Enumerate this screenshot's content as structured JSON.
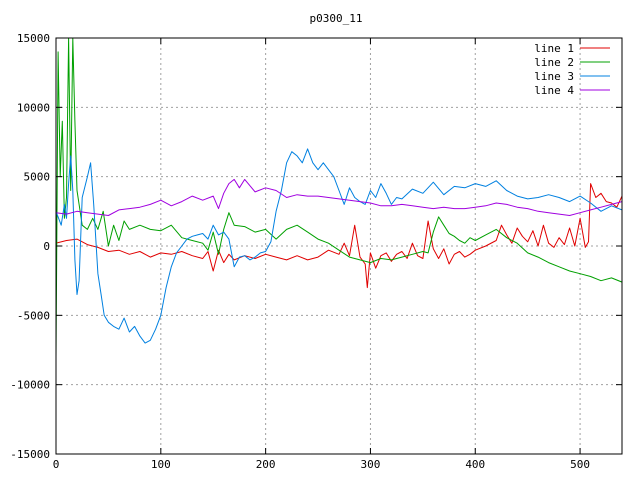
{
  "chart_data": {
    "type": "line",
    "title": "p0300_11",
    "xlabel": "",
    "ylabel": "",
    "xlim": [
      0,
      540
    ],
    "ylim": [
      -15000,
      15000
    ],
    "x_ticks": [
      0,
      100,
      200,
      300,
      400,
      500
    ],
    "y_ticks": [
      -15000,
      -10000,
      -5000,
      0,
      5000,
      10000,
      15000
    ],
    "grid": true,
    "legend_position": "top-right",
    "series": [
      {
        "name": "line 1",
        "color": "#e00000",
        "points": [
          [
            0,
            200
          ],
          [
            10,
            400
          ],
          [
            20,
            500
          ],
          [
            30,
            100
          ],
          [
            40,
            -100
          ],
          [
            50,
            -400
          ],
          [
            60,
            -300
          ],
          [
            70,
            -600
          ],
          [
            80,
            -400
          ],
          [
            90,
            -800
          ],
          [
            100,
            -500
          ],
          [
            110,
            -600
          ],
          [
            120,
            -400
          ],
          [
            130,
            -700
          ],
          [
            140,
            -900
          ],
          [
            145,
            -400
          ],
          [
            150,
            -1800
          ],
          [
            155,
            -300
          ],
          [
            160,
            -1200
          ],
          [
            165,
            -600
          ],
          [
            170,
            -1000
          ],
          [
            180,
            -700
          ],
          [
            190,
            -900
          ],
          [
            200,
            -600
          ],
          [
            210,
            -800
          ],
          [
            220,
            -1000
          ],
          [
            230,
            -700
          ],
          [
            240,
            -1000
          ],
          [
            250,
            -800
          ],
          [
            260,
            -300
          ],
          [
            270,
            -600
          ],
          [
            275,
            200
          ],
          [
            280,
            -700
          ],
          [
            285,
            1500
          ],
          [
            290,
            -800
          ],
          [
            295,
            -1300
          ],
          [
            297,
            -3000
          ],
          [
            300,
            -500
          ],
          [
            305,
            -1600
          ],
          [
            310,
            -700
          ],
          [
            315,
            -500
          ],
          [
            320,
            -1100
          ],
          [
            325,
            -600
          ],
          [
            330,
            -400
          ],
          [
            335,
            -900
          ],
          [
            340,
            200
          ],
          [
            345,
            -700
          ],
          [
            350,
            -900
          ],
          [
            355,
            1800
          ],
          [
            360,
            -200
          ],
          [
            365,
            -900
          ],
          [
            370,
            -200
          ],
          [
            375,
            -1300
          ],
          [
            380,
            -600
          ],
          [
            385,
            -400
          ],
          [
            390,
            -800
          ],
          [
            395,
            -600
          ],
          [
            400,
            -300
          ],
          [
            410,
            0
          ],
          [
            420,
            400
          ],
          [
            425,
            1500
          ],
          [
            430,
            800
          ],
          [
            435,
            200
          ],
          [
            440,
            1300
          ],
          [
            445,
            700
          ],
          [
            450,
            300
          ],
          [
            455,
            1100
          ],
          [
            460,
            0
          ],
          [
            465,
            1500
          ],
          [
            470,
            200
          ],
          [
            475,
            -100
          ],
          [
            480,
            600
          ],
          [
            485,
            100
          ],
          [
            490,
            1300
          ],
          [
            495,
            0
          ],
          [
            500,
            2000
          ],
          [
            505,
            -100
          ],
          [
            508,
            300
          ],
          [
            510,
            4500
          ],
          [
            515,
            3500
          ],
          [
            520,
            3800
          ],
          [
            525,
            3200
          ],
          [
            530,
            3100
          ],
          [
            535,
            2800
          ],
          [
            540,
            3600
          ]
        ]
      },
      {
        "name": "line 2",
        "color": "#00a000",
        "points": [
          [
            0,
            -8000
          ],
          [
            2,
            14000
          ],
          [
            4,
            5000
          ],
          [
            6,
            9000
          ],
          [
            8,
            2000
          ],
          [
            10,
            3500
          ],
          [
            12,
            15000
          ],
          [
            14,
            4000
          ],
          [
            16,
            15000
          ],
          [
            18,
            9000
          ],
          [
            20,
            4000
          ],
          [
            22,
            3000
          ],
          [
            25,
            1500
          ],
          [
            30,
            1200
          ],
          [
            35,
            2000
          ],
          [
            40,
            1200
          ],
          [
            45,
            2500
          ],
          [
            50,
            0
          ],
          [
            55,
            1500
          ],
          [
            60,
            400
          ],
          [
            65,
            1800
          ],
          [
            70,
            1200
          ],
          [
            80,
            1500
          ],
          [
            90,
            1200
          ],
          [
            100,
            1100
          ],
          [
            110,
            1500
          ],
          [
            120,
            600
          ],
          [
            130,
            400
          ],
          [
            140,
            200
          ],
          [
            145,
            -300
          ],
          [
            150,
            1000
          ],
          [
            155,
            -600
          ],
          [
            160,
            1200
          ],
          [
            165,
            2400
          ],
          [
            170,
            1500
          ],
          [
            180,
            1400
          ],
          [
            190,
            1000
          ],
          [
            200,
            1200
          ],
          [
            210,
            500
          ],
          [
            220,
            1200
          ],
          [
            230,
            1500
          ],
          [
            240,
            1000
          ],
          [
            250,
            500
          ],
          [
            260,
            200
          ],
          [
            270,
            -300
          ],
          [
            280,
            -800
          ],
          [
            290,
            -1000
          ],
          [
            300,
            -1200
          ],
          [
            310,
            -900
          ],
          [
            320,
            -1000
          ],
          [
            330,
            -800
          ],
          [
            340,
            -600
          ],
          [
            350,
            -400
          ],
          [
            355,
            -500
          ],
          [
            360,
            1000
          ],
          [
            365,
            2100
          ],
          [
            370,
            1500
          ],
          [
            375,
            900
          ],
          [
            380,
            700
          ],
          [
            385,
            400
          ],
          [
            390,
            200
          ],
          [
            395,
            600
          ],
          [
            400,
            400
          ],
          [
            410,
            800
          ],
          [
            420,
            1200
          ],
          [
            430,
            600
          ],
          [
            440,
            200
          ],
          [
            450,
            -500
          ],
          [
            460,
            -800
          ],
          [
            470,
            -1200
          ],
          [
            480,
            -1500
          ],
          [
            490,
            -1800
          ],
          [
            500,
            -2000
          ],
          [
            510,
            -2200
          ],
          [
            520,
            -2500
          ],
          [
            530,
            -2300
          ],
          [
            540,
            -2600
          ]
        ]
      },
      {
        "name": "line 3",
        "color": "#0080e0",
        "points": [
          [
            0,
            2500
          ],
          [
            5,
            1500
          ],
          [
            8,
            3000
          ],
          [
            10,
            2000
          ],
          [
            12,
            4500
          ],
          [
            14,
            6500
          ],
          [
            16,
            4000
          ],
          [
            18,
            -1000
          ],
          [
            20,
            -3500
          ],
          [
            22,
            -2500
          ],
          [
            25,
            3500
          ],
          [
            30,
            5000
          ],
          [
            33,
            6000
          ],
          [
            36,
            3000
          ],
          [
            40,
            -2000
          ],
          [
            43,
            -3500
          ],
          [
            46,
            -5000
          ],
          [
            50,
            -5500
          ],
          [
            55,
            -5800
          ],
          [
            60,
            -6000
          ],
          [
            65,
            -5200
          ],
          [
            70,
            -6200
          ],
          [
            75,
            -5800
          ],
          [
            80,
            -6500
          ],
          [
            85,
            -7000
          ],
          [
            90,
            -6800
          ],
          [
            95,
            -6000
          ],
          [
            100,
            -5000
          ],
          [
            105,
            -3000
          ],
          [
            110,
            -1500
          ],
          [
            115,
            -500
          ],
          [
            120,
            0
          ],
          [
            125,
            500
          ],
          [
            130,
            700
          ],
          [
            135,
            800
          ],
          [
            140,
            900
          ],
          [
            145,
            500
          ],
          [
            150,
            1500
          ],
          [
            155,
            800
          ],
          [
            160,
            1000
          ],
          [
            165,
            500
          ],
          [
            170,
            -1500
          ],
          [
            175,
            -800
          ],
          [
            180,
            -700
          ],
          [
            185,
            -1000
          ],
          [
            190,
            -800
          ],
          [
            195,
            -500
          ],
          [
            200,
            -400
          ],
          [
            205,
            300
          ],
          [
            210,
            2500
          ],
          [
            215,
            4000
          ],
          [
            220,
            6000
          ],
          [
            225,
            6800
          ],
          [
            230,
            6500
          ],
          [
            235,
            6000
          ],
          [
            240,
            7000
          ],
          [
            245,
            6000
          ],
          [
            250,
            5500
          ],
          [
            255,
            6000
          ],
          [
            260,
            5500
          ],
          [
            265,
            5000
          ],
          [
            270,
            4000
          ],
          [
            275,
            3000
          ],
          [
            280,
            4200
          ],
          [
            285,
            3500
          ],
          [
            290,
            3200
          ],
          [
            295,
            3000
          ],
          [
            300,
            4000
          ],
          [
            305,
            3500
          ],
          [
            310,
            4500
          ],
          [
            315,
            3800
          ],
          [
            320,
            3000
          ],
          [
            325,
            3500
          ],
          [
            330,
            3400
          ],
          [
            340,
            4100
          ],
          [
            350,
            3800
          ],
          [
            360,
            4600
          ],
          [
            370,
            3700
          ],
          [
            380,
            4300
          ],
          [
            390,
            4200
          ],
          [
            400,
            4500
          ],
          [
            410,
            4300
          ],
          [
            420,
            4700
          ],
          [
            430,
            4000
          ],
          [
            440,
            3600
          ],
          [
            450,
            3400
          ],
          [
            460,
            3500
          ],
          [
            470,
            3700
          ],
          [
            480,
            3500
          ],
          [
            490,
            3200
          ],
          [
            500,
            3600
          ],
          [
            510,
            3100
          ],
          [
            520,
            2500
          ],
          [
            530,
            2900
          ],
          [
            540,
            2600
          ]
        ]
      },
      {
        "name": "line 4",
        "color": "#a000e0",
        "points": [
          [
            0,
            2400
          ],
          [
            10,
            2300
          ],
          [
            20,
            2500
          ],
          [
            30,
            2400
          ],
          [
            40,
            2300
          ],
          [
            50,
            2200
          ],
          [
            60,
            2600
          ],
          [
            70,
            2700
          ],
          [
            80,
            2800
          ],
          [
            90,
            3000
          ],
          [
            100,
            3300
          ],
          [
            110,
            2900
          ],
          [
            120,
            3200
          ],
          [
            130,
            3600
          ],
          [
            140,
            3300
          ],
          [
            150,
            3600
          ],
          [
            155,
            2700
          ],
          [
            160,
            3800
          ],
          [
            165,
            4500
          ],
          [
            170,
            4800
          ],
          [
            175,
            4200
          ],
          [
            180,
            4800
          ],
          [
            190,
            3900
          ],
          [
            200,
            4200
          ],
          [
            210,
            4000
          ],
          [
            220,
            3500
          ],
          [
            230,
            3700
          ],
          [
            240,
            3600
          ],
          [
            250,
            3600
          ],
          [
            260,
            3500
          ],
          [
            270,
            3400
          ],
          [
            280,
            3300
          ],
          [
            290,
            3200
          ],
          [
            300,
            3100
          ],
          [
            310,
            2900
          ],
          [
            320,
            2900
          ],
          [
            330,
            3000
          ],
          [
            340,
            2900
          ],
          [
            350,
            2800
          ],
          [
            360,
            2700
          ],
          [
            370,
            2800
          ],
          [
            380,
            2700
          ],
          [
            390,
            2700
          ],
          [
            400,
            2800
          ],
          [
            410,
            2900
          ],
          [
            420,
            3100
          ],
          [
            430,
            3000
          ],
          [
            440,
            2800
          ],
          [
            450,
            2700
          ],
          [
            460,
            2500
          ],
          [
            470,
            2400
          ],
          [
            480,
            2300
          ],
          [
            490,
            2200
          ],
          [
            500,
            2400
          ],
          [
            510,
            2600
          ],
          [
            520,
            2800
          ],
          [
            530,
            3000
          ],
          [
            540,
            3200
          ]
        ]
      }
    ]
  }
}
